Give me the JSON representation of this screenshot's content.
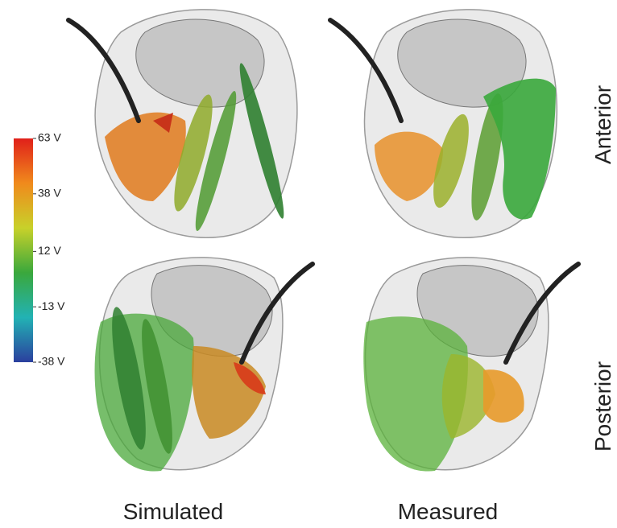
{
  "figure": {
    "colorbar": {
      "lim": [
        -38,
        63
      ],
      "ticks": [
        {
          "value": 63,
          "label": "63 V"
        },
        {
          "value": 38,
          "label": "38 V"
        },
        {
          "value": 12,
          "label": "12 V"
        },
        {
          "value": -13,
          "label": "-13 V"
        },
        {
          "value": -38,
          "label": "-38 V"
        }
      ],
      "colors": [
        "#2b3f9e",
        "#22b2b4",
        "#3aa83c",
        "#c8d12a",
        "#f08a1c",
        "#e0201a"
      ]
    },
    "columns": [
      "Simulated",
      "Measured"
    ],
    "rows": [
      "Anterior",
      "Posterior"
    ]
  }
}
